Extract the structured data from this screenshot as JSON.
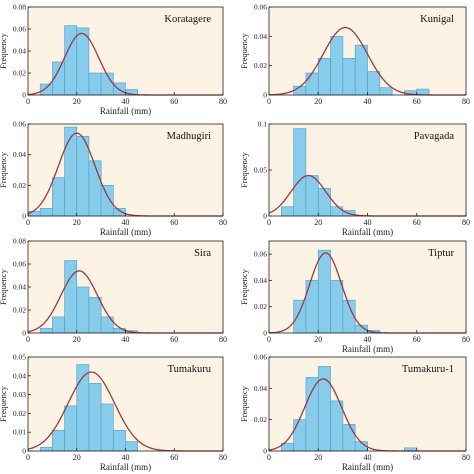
{
  "colors": {
    "panel_bg": "#fdf3e4",
    "bar_fill": "#87ccea",
    "bar_stroke": "#4f9cc9",
    "curve": "#9a3a47",
    "axis": "#222222"
  },
  "chart_data": [
    {
      "type": "bar",
      "title": "Koratagere",
      "xlabel": "Rainfall (mm)",
      "ylabel": "Frequency",
      "xlim": [
        0,
        80
      ],
      "ylim": [
        0,
        0.08
      ],
      "xticks": [
        "0",
        "20",
        "40",
        "60",
        "80"
      ],
      "yticks": [
        "0",
        "0.02",
        "0.04",
        "0.06",
        "0.08"
      ],
      "bins": [
        [
          5,
          10,
          0.01
        ],
        [
          10,
          15,
          0.03
        ],
        [
          15,
          20,
          0.063
        ],
        [
          20,
          25,
          0.061
        ],
        [
          25,
          30,
          0.02
        ],
        [
          30,
          35,
          0.02
        ],
        [
          35,
          40,
          0.011
        ],
        [
          40,
          45,
          0.005
        ]
      ],
      "curve": {
        "mean": 22,
        "sd": 7,
        "peak": 0.056
      }
    },
    {
      "type": "bar",
      "title": "Kunigal",
      "xlabel": "",
      "ylabel": "Frequency",
      "xlim": [
        0,
        80
      ],
      "ylim": [
        0,
        0.06
      ],
      "xticks": [
        "0",
        "20",
        "40",
        "60",
        "80"
      ],
      "yticks": [
        "0",
        "0.02",
        "0.04",
        "0.06"
      ],
      "bins": [
        [
          10,
          15,
          0.006
        ],
        [
          15,
          20,
          0.015
        ],
        [
          20,
          25,
          0.025
        ],
        [
          25,
          30,
          0.04
        ],
        [
          30,
          35,
          0.025
        ],
        [
          35,
          40,
          0.034
        ],
        [
          40,
          45,
          0.016
        ],
        [
          45,
          50,
          0.005
        ],
        [
          55,
          60,
          0.003
        ],
        [
          60,
          65,
          0.004
        ]
      ],
      "curve": {
        "mean": 31,
        "sd": 9,
        "peak": 0.046
      }
    },
    {
      "type": "bar",
      "title": "Madhugiri",
      "xlabel": "Rainfall (mm)",
      "ylabel": "Frequency",
      "xlim": [
        0,
        80
      ],
      "ylim": [
        0,
        0.06
      ],
      "xticks": [
        "0",
        "20",
        "40",
        "60",
        "80"
      ],
      "yticks": [
        "0",
        "0.02",
        "0.04",
        "0.06"
      ],
      "bins": [
        [
          0,
          5,
          0.003
        ],
        [
          5,
          10,
          0.005
        ],
        [
          10,
          15,
          0.025
        ],
        [
          15,
          20,
          0.058
        ],
        [
          20,
          25,
          0.052
        ],
        [
          25,
          30,
          0.036
        ],
        [
          30,
          35,
          0.02
        ],
        [
          35,
          40,
          0.005
        ]
      ],
      "curve": {
        "mean": 20,
        "sd": 7.5,
        "peak": 0.054
      }
    },
    {
      "type": "bar",
      "title": "Pavagada",
      "xlabel": "Rainfall (mm)",
      "ylabel": "Frequency",
      "xlim": [
        0,
        80
      ],
      "ylim": [
        0,
        0.1
      ],
      "xticks": [
        "0",
        "20",
        "40",
        "60",
        "80"
      ],
      "yticks": [
        "0",
        "0.05",
        "0.1"
      ],
      "bins": [
        [
          5,
          10,
          0.01
        ],
        [
          10,
          15,
          0.095
        ],
        [
          15,
          20,
          0.044
        ],
        [
          20,
          25,
          0.03
        ],
        [
          25,
          30,
          0.01
        ],
        [
          30,
          35,
          0.006
        ]
      ],
      "curve": {
        "mean": 16,
        "sd": 7,
        "peak": 0.044
      }
    },
    {
      "type": "bar",
      "title": "Sira",
      "xlabel": "",
      "ylabel": "Frequency",
      "xlim": [
        0,
        80
      ],
      "ylim": [
        0,
        0.08
      ],
      "xticks": [
        "0",
        "20",
        "40",
        "60",
        "80"
      ],
      "yticks": [
        "0",
        "0.02",
        "0.04",
        "0.06",
        "0.08"
      ],
      "bins": [
        [
          5,
          10,
          0.004
        ],
        [
          10,
          15,
          0.014
        ],
        [
          15,
          20,
          0.063
        ],
        [
          20,
          25,
          0.04
        ],
        [
          25,
          30,
          0.031
        ],
        [
          30,
          35,
          0.014
        ],
        [
          35,
          40,
          0.004
        ],
        [
          40,
          45,
          0.002
        ]
      ],
      "curve": {
        "mean": 21,
        "sd": 7.5,
        "peak": 0.054
      }
    },
    {
      "type": "bar",
      "title": "Tiptur",
      "xlabel": "Rainfall (mm)",
      "ylabel": "Frequency",
      "xlim": [
        0,
        80
      ],
      "ylim": [
        0,
        0.07
      ],
      "xticks": [
        "0",
        "20",
        "40",
        "60",
        "80"
      ],
      "yticks": [
        "0",
        "0.02",
        "0.04",
        "0.06"
      ],
      "bins": [
        [
          10,
          15,
          0.025
        ],
        [
          15,
          20,
          0.04
        ],
        [
          20,
          25,
          0.063
        ],
        [
          25,
          30,
          0.04
        ],
        [
          30,
          35,
          0.025
        ],
        [
          35,
          40,
          0.006
        ],
        [
          40,
          45,
          0.002
        ]
      ],
      "curve": {
        "mean": 23,
        "sd": 6.5,
        "peak": 0.061
      }
    },
    {
      "type": "bar",
      "title": "Tumakuru",
      "xlabel": "Rainfall (mm)",
      "ylabel": "Frequency",
      "xlim": [
        0,
        80
      ],
      "ylim": [
        0,
        0.05
      ],
      "xticks": [
        "0",
        "20",
        "40",
        "60",
        "80"
      ],
      "yticks": [
        "0",
        "0.01",
        "0.02",
        "0.03",
        "0.04",
        "0.05"
      ],
      "bins": [
        [
          5,
          10,
          0.002
        ],
        [
          10,
          15,
          0.011
        ],
        [
          15,
          20,
          0.024
        ],
        [
          20,
          25,
          0.046
        ],
        [
          25,
          30,
          0.036
        ],
        [
          30,
          35,
          0.025
        ],
        [
          35,
          40,
          0.011
        ],
        [
          40,
          45,
          0.005
        ]
      ],
      "curve": {
        "mean": 26,
        "sd": 9.5,
        "peak": 0.042
      }
    },
    {
      "type": "bar",
      "title": "Tumakuru-1",
      "xlabel": "Rainfall (mm)",
      "ylabel": "Frequency",
      "xlim": [
        0,
        80
      ],
      "ylim": [
        0,
        0.06
      ],
      "xticks": [
        "0",
        "20",
        "40",
        "60",
        "80"
      ],
      "yticks": [
        "0",
        "0.02",
        "0.04",
        "0.06"
      ],
      "bins": [
        [
          5,
          10,
          0.005
        ],
        [
          10,
          15,
          0.02
        ],
        [
          15,
          20,
          0.047
        ],
        [
          20,
          25,
          0.054
        ],
        [
          25,
          30,
          0.032
        ],
        [
          30,
          35,
          0.017
        ],
        [
          35,
          40,
          0.006
        ],
        [
          55,
          60,
          0.002
        ]
      ],
      "curve": {
        "mean": 22,
        "sd": 7.5,
        "peak": 0.046
      }
    }
  ]
}
